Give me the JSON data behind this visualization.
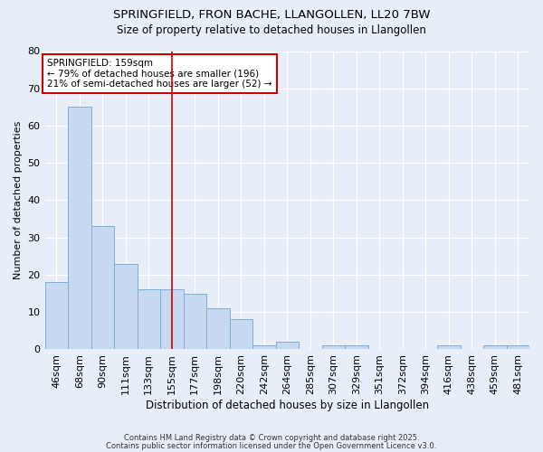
{
  "title1": "SPRINGFIELD, FRON BACHE, LLANGOLLEN, LL20 7BW",
  "title2": "Size of property relative to detached houses in Llangollen",
  "xlabel": "Distribution of detached houses by size in Llangollen",
  "ylabel": "Number of detached properties",
  "categories": [
    "46sqm",
    "68sqm",
    "90sqm",
    "111sqm",
    "133sqm",
    "155sqm",
    "177sqm",
    "198sqm",
    "220sqm",
    "242sqm",
    "264sqm",
    "285sqm",
    "307sqm",
    "329sqm",
    "351sqm",
    "372sqm",
    "394sqm",
    "416sqm",
    "438sqm",
    "459sqm",
    "481sqm"
  ],
  "values": [
    18,
    65,
    33,
    23,
    16,
    16,
    15,
    11,
    8,
    1,
    2,
    0,
    1,
    1,
    0,
    0,
    0,
    1,
    0,
    1,
    1
  ],
  "bar_color": "#c6d9f0",
  "bar_edge_color": "#7eaed4",
  "ylim": [
    0,
    80
  ],
  "yticks": [
    0,
    10,
    20,
    30,
    40,
    50,
    60,
    70,
    80
  ],
  "vline_x": 5,
  "vline_color": "#cc0000",
  "annotation_text": "SPRINGFIELD: 159sqm\n← 79% of detached houses are smaller (196)\n21% of semi-detached houses are larger (52) →",
  "annotation_box_color": "#ffffff",
  "annotation_box_edge": "#cc0000",
  "footer1": "Contains HM Land Registry data © Crown copyright and database right 2025.",
  "footer2": "Contains public sector information licensed under the Open Government Licence v3.0.",
  "background_color": "#e8eef8",
  "plot_bg_color": "#e8eef8",
  "grid_color": "#ffffff",
  "title_fontsize": 9.5,
  "subtitle_fontsize": 8.5
}
